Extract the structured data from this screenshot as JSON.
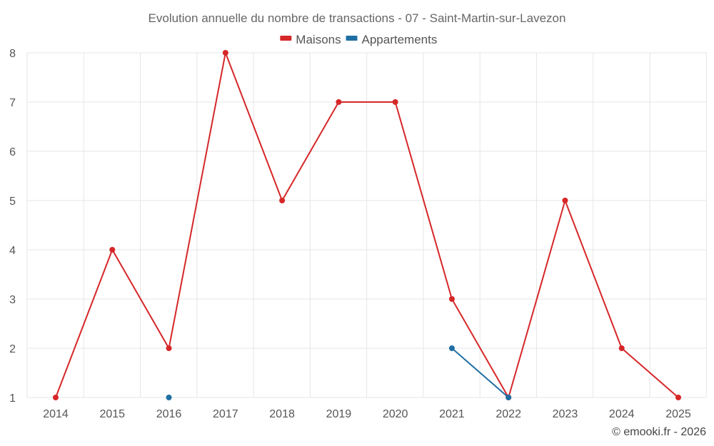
{
  "chart_data": {
    "type": "line",
    "title": "Evolution annuelle du nombre de transactions - 07 - Saint-Martin-sur-Lavezon",
    "categories": [
      "2014",
      "2015",
      "2016",
      "2017",
      "2018",
      "2019",
      "2020",
      "2021",
      "2022",
      "2023",
      "2024",
      "2025"
    ],
    "ylim": [
      1,
      8
    ],
    "yticks": [
      1,
      2,
      3,
      4,
      5,
      6,
      7,
      8
    ],
    "grid": true,
    "legend_position": "top-center",
    "series": [
      {
        "name": "Maisons",
        "color": "#d62728",
        "values": [
          1,
          4,
          2,
          8,
          5,
          7,
          7,
          3,
          1,
          5,
          2,
          1
        ]
      },
      {
        "name": "Appartements",
        "color": "#1f6fa3",
        "values": [
          null,
          null,
          1,
          null,
          null,
          null,
          null,
          2,
          1,
          null,
          null,
          null
        ]
      }
    ],
    "credit": "© emooki.fr - 2026"
  }
}
